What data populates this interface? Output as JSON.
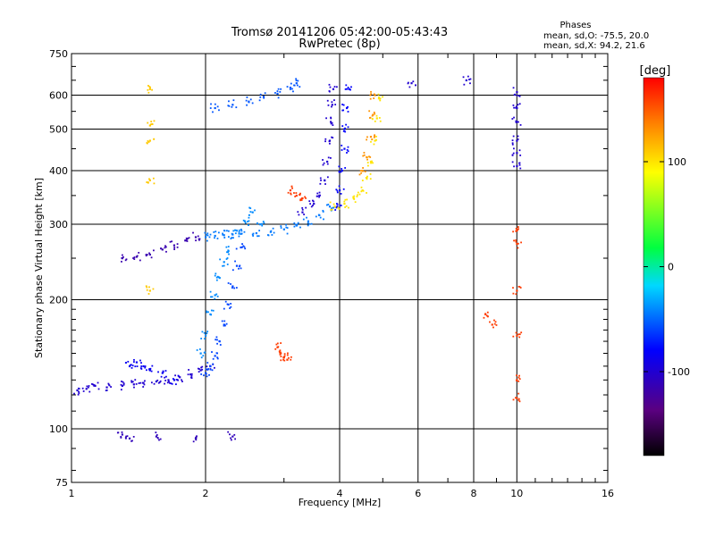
{
  "chart_data": {
    "type": "scatter",
    "title": "Tromsø 20141206 05:42:00-05:43:43",
    "subtitle": "RwPretec (8p)",
    "stats": {
      "heading": "Phases",
      "line_o": "mean, sd,O: -75.5, 20.0",
      "line_x": "mean, sd,X:  94.2, 21.6"
    },
    "xlabel": "Frequency [MHz]",
    "ylabel": "Stationary phase Virtual Height [km]",
    "x_scale": "log",
    "y_scale": "log",
    "xlim": [
      1,
      16
    ],
    "ylim": [
      75,
      750
    ],
    "x_ticks": [
      1,
      2,
      4,
      6,
      8,
      10,
      16
    ],
    "y_ticks": [
      75,
      100,
      200,
      300,
      400,
      500,
      600,
      750
    ],
    "grid": true,
    "colorbar": {
      "label": "[deg]",
      "range": [
        -180,
        180
      ],
      "ticks": [
        100,
        0,
        -100
      ],
      "colors": [
        "#000000",
        "#5a0080",
        "#0000ff",
        "#00d8ff",
        "#00ff40",
        "#ffff00",
        "#ff8000",
        "#ff0000"
      ]
    },
    "series": [
      {
        "phase": -100,
        "points": [
          [
            1.03,
            123
          ],
          [
            1.08,
            124
          ],
          [
            1.13,
            126
          ],
          [
            1.2,
            125
          ],
          [
            1.3,
            126
          ],
          [
            1.38,
            127
          ],
          [
            1.45,
            128
          ],
          [
            1.55,
            129
          ],
          [
            1.65,
            130
          ],
          [
            1.75,
            132
          ],
          [
            1.85,
            134
          ],
          [
            1.95,
            137
          ],
          [
            2.05,
            140
          ]
        ]
      },
      {
        "phase": -85,
        "points": [
          [
            1.35,
            140
          ],
          [
            1.4,
            143
          ],
          [
            1.45,
            140
          ],
          [
            1.5,
            137
          ],
          [
            1.6,
            135
          ],
          [
            1.7,
            130
          ]
        ]
      },
      {
        "phase": -60,
        "points": [
          [
            2.0,
            135
          ],
          [
            2.05,
            140
          ],
          [
            2.1,
            148
          ],
          [
            2.15,
            160
          ],
          [
            2.2,
            175
          ],
          [
            2.25,
            195
          ],
          [
            2.3,
            215
          ],
          [
            2.35,
            240
          ],
          [
            2.4,
            265
          ]
        ]
      },
      {
        "phase": -40,
        "points": [
          [
            1.95,
            150
          ],
          [
            2.0,
            165
          ],
          [
            2.05,
            185
          ],
          [
            2.1,
            205
          ],
          [
            2.15,
            225
          ],
          [
            2.2,
            245
          ],
          [
            2.25,
            260
          ],
          [
            2.35,
            290
          ],
          [
            2.45,
            305
          ],
          [
            2.55,
            320
          ],
          [
            2.65,
            300
          ]
        ]
      },
      {
        "phase": -45,
        "points": [
          [
            2.0,
            280
          ],
          [
            2.1,
            282
          ],
          [
            2.2,
            283
          ],
          [
            2.3,
            284
          ],
          [
            2.4,
            285
          ],
          [
            2.6,
            286
          ],
          [
            2.8,
            288
          ],
          [
            3.0,
            292
          ],
          [
            3.2,
            298
          ],
          [
            3.4,
            305
          ],
          [
            3.6,
            315
          ],
          [
            3.8,
            330
          ]
        ]
      },
      {
        "phase": -115,
        "points": [
          [
            1.3,
            250
          ],
          [
            1.4,
            252
          ],
          [
            1.5,
            255
          ],
          [
            1.6,
            262
          ],
          [
            1.7,
            268
          ],
          [
            1.8,
            275
          ],
          [
            1.9,
            280
          ]
        ]
      },
      {
        "phase": -100,
        "points": [
          [
            3.3,
            320
          ],
          [
            3.5,
            335
          ],
          [
            3.6,
            350
          ],
          [
            3.7,
            380
          ],
          [
            3.75,
            420
          ],
          [
            3.8,
            470
          ],
          [
            3.82,
            520
          ],
          [
            3.85,
            570
          ],
          [
            3.87,
            620
          ]
        ]
      },
      {
        "phase": -80,
        "points": [
          [
            3.95,
            330
          ],
          [
            4.0,
            360
          ],
          [
            4.05,
            400
          ],
          [
            4.1,
            450
          ],
          [
            4.1,
            500
          ],
          [
            4.15,
            560
          ],
          [
            4.2,
            620
          ]
        ]
      },
      {
        "phase": 100,
        "points": [
          [
            3.9,
            330
          ],
          [
            4.1,
            335
          ],
          [
            4.3,
            345
          ],
          [
            4.5,
            360
          ],
          [
            4.6,
            385
          ],
          [
            4.7,
            420
          ],
          [
            4.8,
            470
          ],
          [
            4.85,
            530
          ],
          [
            4.9,
            590
          ]
        ]
      },
      {
        "phase": 130,
        "points": [
          [
            4.5,
            400
          ],
          [
            4.6,
            430
          ],
          [
            4.7,
            480
          ],
          [
            4.75,
            540
          ],
          [
            4.8,
            600
          ]
        ]
      },
      {
        "phase": 160,
        "points": [
          [
            3.1,
            360
          ],
          [
            3.2,
            350
          ],
          [
            3.3,
            345
          ],
          [
            2.9,
            155
          ],
          [
            2.95,
            150
          ],
          [
            3.0,
            147
          ],
          [
            3.05,
            145
          ]
        ]
      },
      {
        "phase": -55,
        "points": [
          [
            2.1,
            560
          ],
          [
            2.3,
            570
          ],
          [
            2.5,
            580
          ],
          [
            2.7,
            595
          ],
          [
            2.9,
            605
          ],
          [
            3.1,
            625
          ],
          [
            3.2,
            640
          ]
        ]
      },
      {
        "phase": -100,
        "points": [
          [
            10.0,
            410
          ],
          [
            10.0,
            440
          ],
          [
            10.0,
            470
          ],
          [
            10.0,
            520
          ],
          [
            10.0,
            560
          ],
          [
            10.0,
            610
          ],
          [
            7.7,
            650
          ],
          [
            5.8,
            640
          ]
        ]
      },
      {
        "phase": 160,
        "points": [
          [
            10.0,
            290
          ],
          [
            10.0,
            270
          ],
          [
            10.0,
            210
          ],
          [
            10.0,
            165
          ],
          [
            10.0,
            130
          ],
          [
            10.0,
            118
          ],
          [
            8.5,
            185
          ],
          [
            8.8,
            175
          ]
        ]
      },
      {
        "phase": -110,
        "points": [
          [
            1.3,
            97
          ],
          [
            1.35,
            95
          ],
          [
            1.55,
            96
          ],
          [
            1.9,
            95
          ],
          [
            2.3,
            96
          ]
        ]
      },
      {
        "phase": 110,
        "points": [
          [
            1.5,
            620
          ],
          [
            1.5,
            510
          ],
          [
            1.5,
            470
          ],
          [
            1.5,
            210
          ],
          [
            1.5,
            380
          ]
        ]
      }
    ]
  }
}
